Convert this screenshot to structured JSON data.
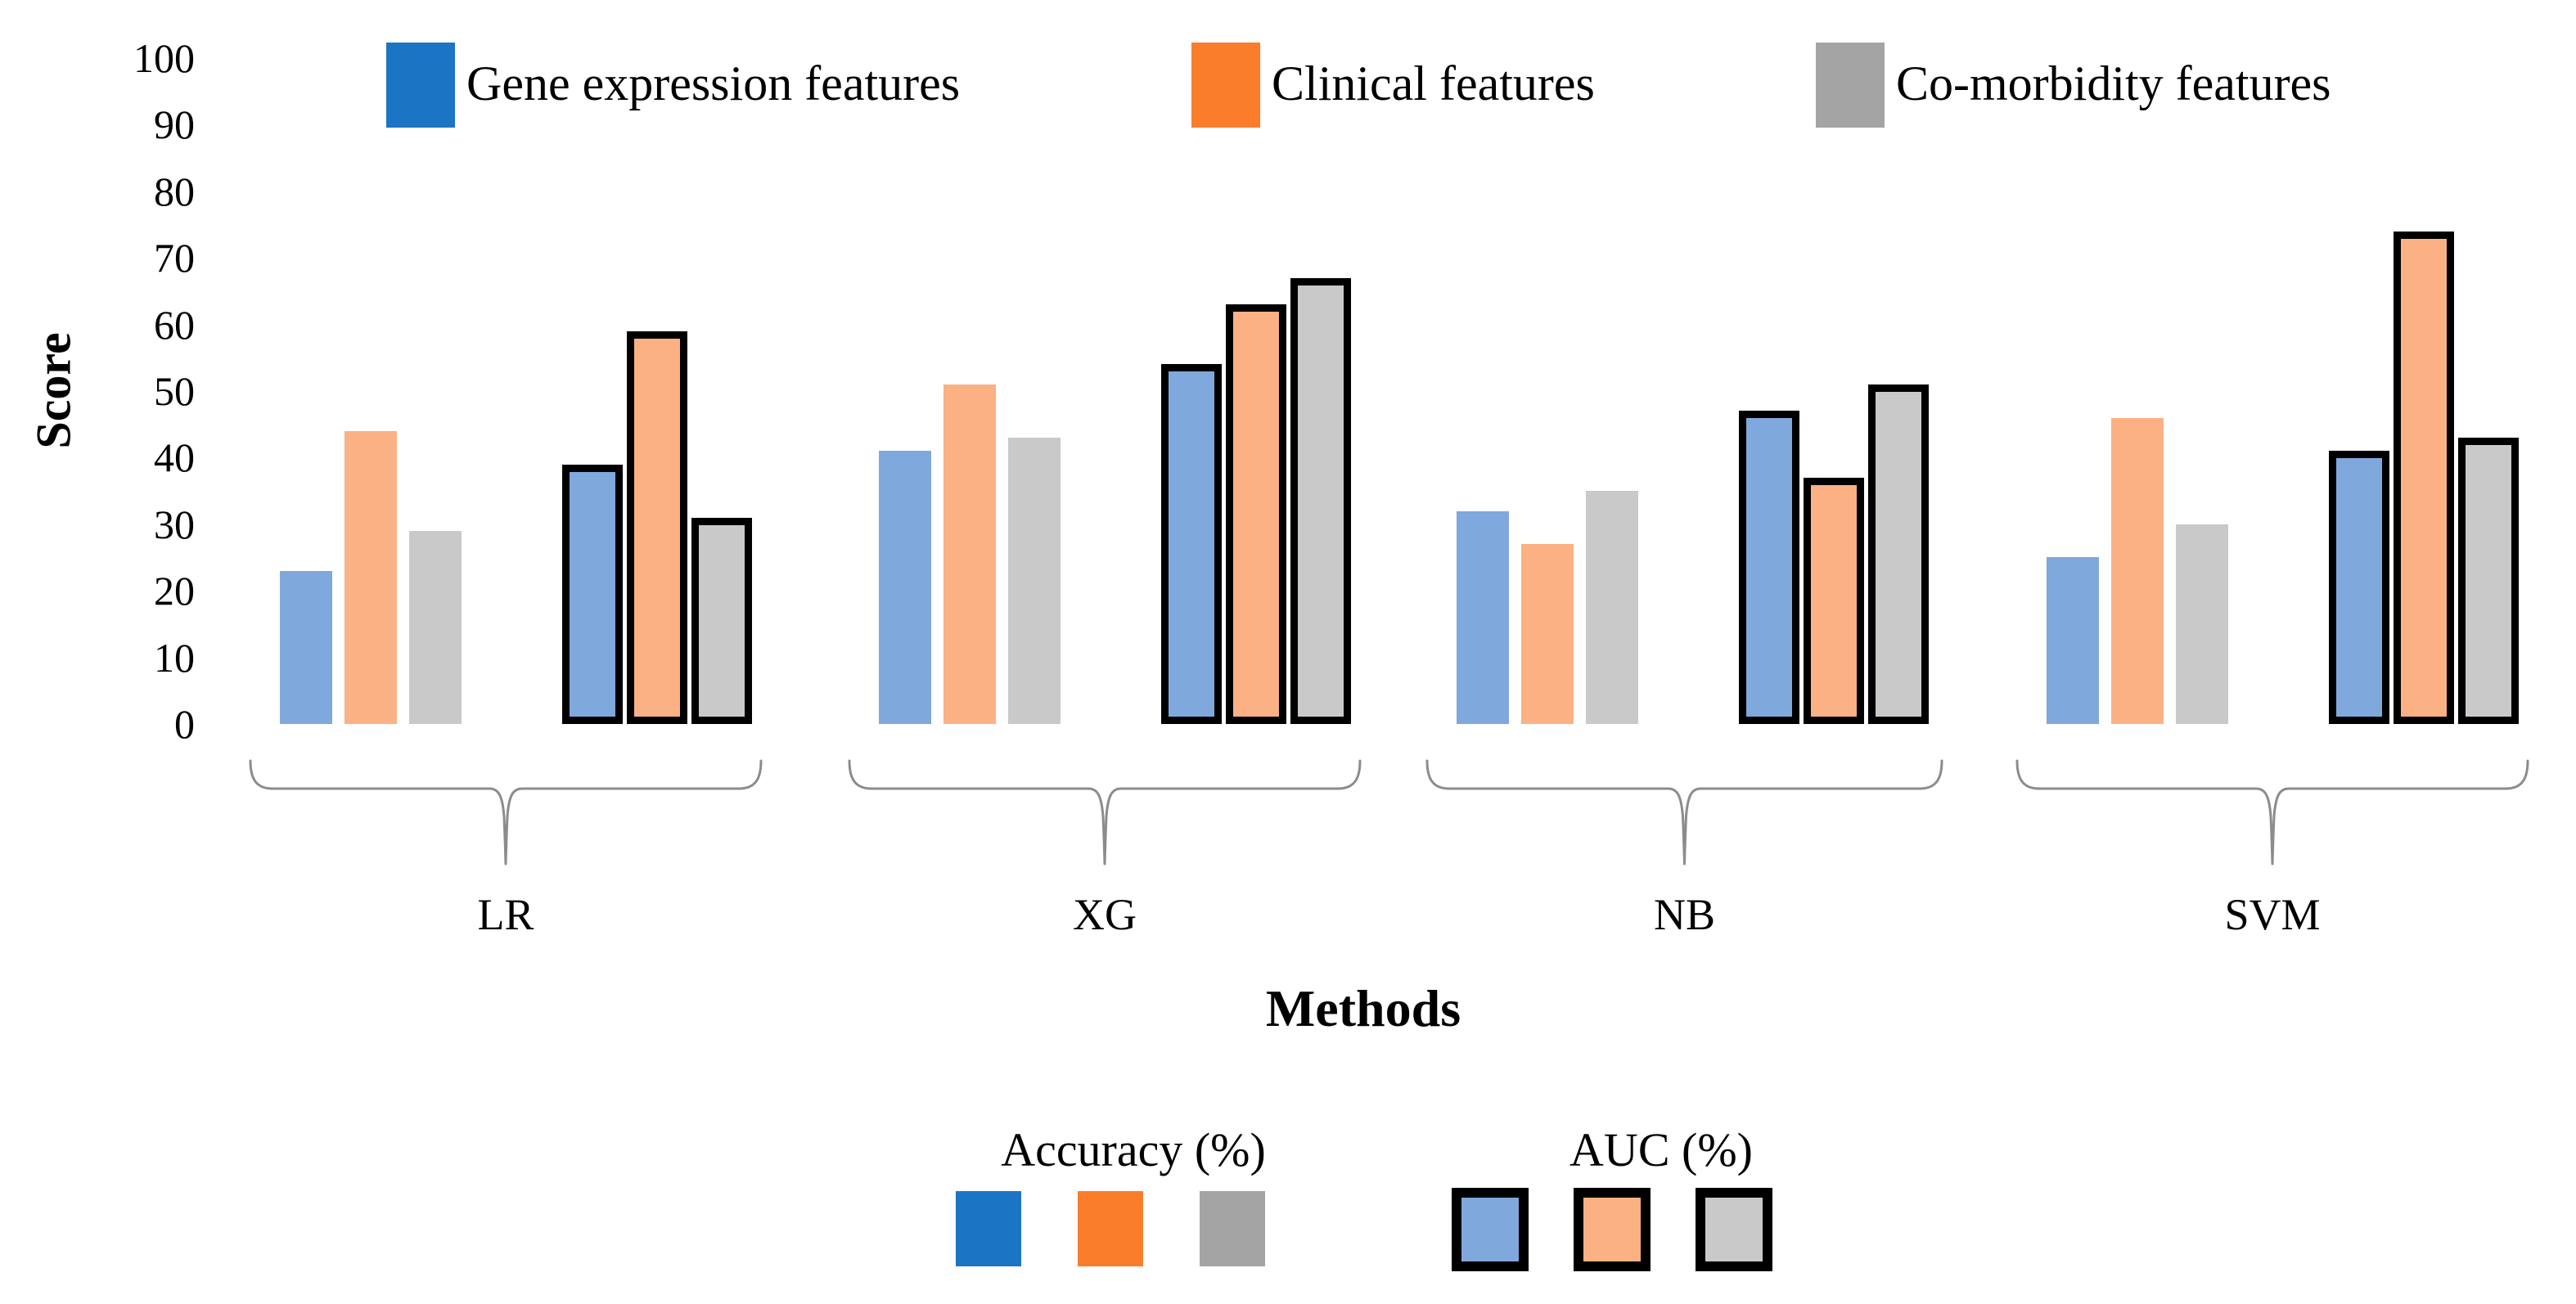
{
  "chart_data": {
    "type": "bar",
    "title": "",
    "xlabel": "Methods",
    "ylabel": "Score",
    "ylim": [
      0,
      100
    ],
    "yticks": [
      0,
      10,
      20,
      30,
      40,
      50,
      60,
      70,
      80,
      90,
      100
    ],
    "grid": false,
    "categories": [
      "LR",
      "XG",
      "NB",
      "SVM"
    ],
    "feature_legend": [
      {
        "label": "Gene expression features",
        "color": "#1B75C4"
      },
      {
        "label": "Clinical features",
        "color": "#F97D2A"
      },
      {
        "label": "Co-morbidity features",
        "color": "#A4A4A4"
      }
    ],
    "bar_fill_colors": [
      "#7FA8DD",
      "#FBB183",
      "#C9C9C9"
    ],
    "outline_color": "#000000",
    "brace_color": "#8C8C8C",
    "metric_legend": [
      {
        "label": "Accuracy (%)",
        "style": "solid"
      },
      {
        "label": "AUC (%)",
        "style": "outlined"
      }
    ],
    "series": [
      {
        "metric": "Accuracy (%)",
        "feature": "Gene expression features",
        "values": [
          23,
          41,
          32,
          25
        ]
      },
      {
        "metric": "Accuracy (%)",
        "feature": "Clinical features",
        "values": [
          44,
          51,
          27,
          46
        ]
      },
      {
        "metric": "Accuracy (%)",
        "feature": "Co-morbidity features",
        "values": [
          29,
          43,
          35,
          30
        ]
      },
      {
        "metric": "AUC (%)",
        "feature": "Gene expression features",
        "values": [
          39,
          54,
          47,
          41
        ]
      },
      {
        "metric": "AUC (%)",
        "feature": "Clinical features",
        "values": [
          59,
          63,
          37,
          74
        ]
      },
      {
        "metric": "AUC (%)",
        "feature": "Co-morbidity features",
        "values": [
          31,
          67,
          51,
          43
        ]
      }
    ]
  }
}
